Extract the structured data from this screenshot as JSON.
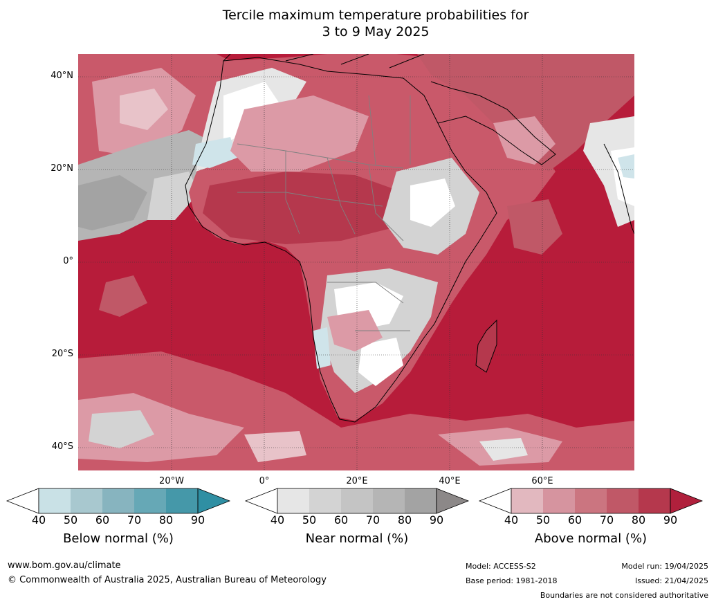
{
  "title_line1": "Tercile maximum temperature probabilities for",
  "title_line2": "3 to 9 May 2025",
  "lat_labels": [
    "40°N",
    "20°N",
    "0°",
    "20°S",
    "40°S"
  ],
  "lon_labels": [
    "20°W",
    "0°",
    "20°E",
    "40°E",
    "60°E"
  ],
  "colorbars": [
    {
      "title": "Below normal (%)",
      "ticks": [
        "40",
        "50",
        "60",
        "70",
        "80",
        "90"
      ],
      "colors": [
        "#c9e1e6",
        "#a8c8cf",
        "#87b4bf",
        "#66a8b6",
        "#4598a9",
        "#2f8fa3"
      ]
    },
    {
      "title": "Near normal (%)",
      "ticks": [
        "40",
        "50",
        "60",
        "70",
        "80",
        "90"
      ],
      "colors": [
        "#e6e6e6",
        "#d3d3d3",
        "#c4c4c4",
        "#b5b5b5",
        "#a3a3a3",
        "#8c8888"
      ]
    },
    {
      "title": "Above normal (%)",
      "ticks": [
        "40",
        "50",
        "60",
        "70",
        "80",
        "90"
      ],
      "colors": [
        "#e2b8bf",
        "#d6949f",
        "#cb7580",
        "#c05867",
        "#b5384d",
        "#b0203c"
      ]
    }
  ],
  "footer": {
    "website": "www.bom.gov.au/climate",
    "copyright": "© Commonwealth of Australia 2025, Australian Bureau of Meteorology",
    "model": "Model: ACCESS-S2",
    "base_period": "Base period: 1981-2018",
    "model_run": "Model run: 19/04/2025",
    "issued": "Issued: 21/04/2025",
    "disclaimer": "Boundaries are not considered authoritative"
  },
  "map_colors": {
    "ocean_warm": "#b71c3a",
    "land_warm": "#c9596a",
    "light_pink": "#dc9aa6",
    "near_normal": "#c8c8c8",
    "below_normal": "#cfe4ea",
    "white": "#ffffff",
    "coast": "#000000",
    "border": "#808080"
  }
}
